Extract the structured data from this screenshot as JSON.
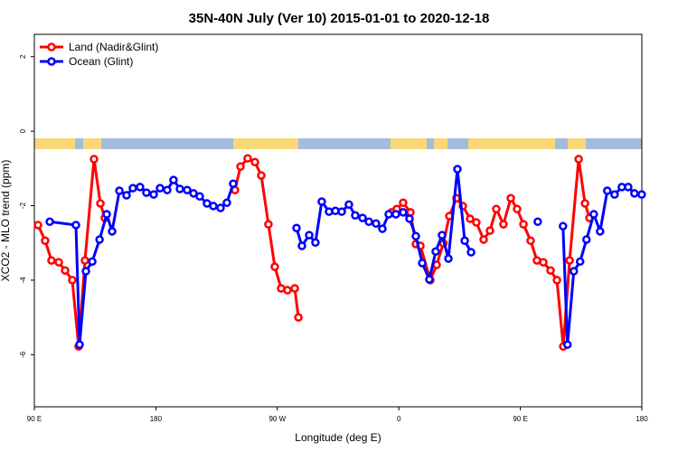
{
  "chart_data": {
    "type": "line",
    "title": "35N-40N July (Ver 10)   2015-01-01 to 2020-12-18",
    "xlabel": "Longitude (deg E)",
    "ylabel": "XCO2 - MLO trend (ppm)",
    "xlim": [
      90,
      540
    ],
    "ylim": [
      -7.4,
      2.6
    ],
    "xticks": [
      {
        "value": 90,
        "label": "90 E"
      },
      180,
      {
        "value": 270,
        "label": "90 W"
      },
      {
        "value": 360,
        "label": "0"
      },
      {
        "value": 450,
        "label": "90 E"
      },
      {
        "value": 540,
        "label": "180"
      }
    ],
    "yticks": [
      2,
      0,
      -2,
      -4,
      -6
    ],
    "legend": "top-left",
    "series": [
      {
        "name": "Land (Nadir&Glint)",
        "color": "#ff0000",
        "x": [
          92.7,
          98.0,
          102.7,
          108.1,
          112.8,
          118.1,
          122.8,
          127.5,
          134.2,
          138.9,
          142.2,
          null,
          238.6,
          242.7,
          248.0,
          253.4,
          258.1,
          263.4,
          268.1,
          272.8,
          277.5,
          282.9,
          285.6,
          null,
          354.5,
          358.5,
          363.2,
          368.6,
          372.6,
          376.0,
          383.3,
          388.0,
          393.0,
          397.4,
          402.7,
          407.4,
          412.8,
          417.4,
          422.8,
          427.5,
          432.2,
          437.5,
          442.9,
          447.6,
          452.3,
          457.6,
          462.3,
          467.0,
          472.4,
          477.1,
          481.8,
          486.5,
          493.2,
          497.9,
          501.2
        ],
        "values": [
          -2.52,
          -2.94,
          -3.47,
          -3.52,
          -3.74,
          -4.0,
          -5.78,
          -3.47,
          -0.75,
          -1.94,
          -2.33,
          null,
          -1.58,
          -0.95,
          -0.73,
          -0.83,
          -1.19,
          -2.5,
          -3.64,
          -4.22,
          -4.27,
          -4.22,
          -5.0,
          null,
          -2.18,
          -2.09,
          -1.92,
          -2.18,
          -3.03,
          -3.08,
          -4.0,
          -3.59,
          -3.01,
          -2.28,
          -1.8,
          -2.01,
          -2.35,
          -2.45,
          -2.91,
          -2.67,
          -2.09,
          -2.5,
          -1.8,
          -2.09,
          -2.5,
          -2.94,
          -3.47,
          -3.52,
          -3.74,
          -4.0,
          -5.78,
          -3.47,
          -0.75,
          -1.94,
          -2.33
        ]
      },
      {
        "name": "Ocean (Glint)",
        "color": "#0000ff",
        "x": [
          101.4,
          120.8,
          123.5,
          128.2,
          132.9,
          138.3,
          143.6,
          147.6,
          153.0,
          158.3,
          163.0,
          168.3,
          173.0,
          178.4,
          183.1,
          188.4,
          193.1,
          197.8,
          203.2,
          207.9,
          212.5,
          217.9,
          222.6,
          227.9,
          232.6,
          237.3,
          null,
          284.2,
          288.2,
          293.6,
          298.2,
          302.9,
          308.3,
          313.0,
          317.7,
          323.0,
          327.7,
          333.1,
          337.8,
          343.1,
          347.8,
          352.5,
          357.8,
          363.2,
          367.9,
          372.6,
          377.3,
          382.6,
          387.3,
          392.0,
          396.7,
          403.4,
          408.8,
          413.5,
          null,
          462.9,
          null,
          481.6,
          484.9,
          489.6,
          494.3,
          499.0,
          504.4,
          509.1,
          514.4,
          519.8,
          525.2,
          529.9,
          534.5,
          539.9
        ],
        "values": [
          -2.43,
          -2.52,
          -5.73,
          -3.76,
          -3.5,
          -2.91,
          -2.23,
          -2.69,
          -1.6,
          -1.72,
          -1.53,
          -1.5,
          -1.65,
          -1.7,
          -1.53,
          -1.58,
          -1.31,
          -1.55,
          -1.58,
          -1.67,
          -1.75,
          -1.94,
          -2.01,
          -2.06,
          -1.92,
          -1.41,
          null,
          -2.6,
          -3.08,
          -2.79,
          -2.99,
          -1.89,
          -2.16,
          -2.14,
          -2.16,
          -1.97,
          -2.26,
          -2.33,
          -2.43,
          -2.48,
          -2.62,
          -2.23,
          -2.23,
          -2.18,
          -2.35,
          -2.82,
          -3.54,
          -3.98,
          -3.23,
          -2.79,
          -3.42,
          -1.02,
          -2.94,
          -3.25,
          null,
          -2.43,
          null,
          -2.55,
          -5.73,
          -3.76,
          -3.5,
          -2.91,
          -2.23,
          -2.69,
          -1.6,
          -1.7,
          -1.5,
          -1.5,
          -1.67,
          -1.7
        ]
      }
    ]
  }
}
